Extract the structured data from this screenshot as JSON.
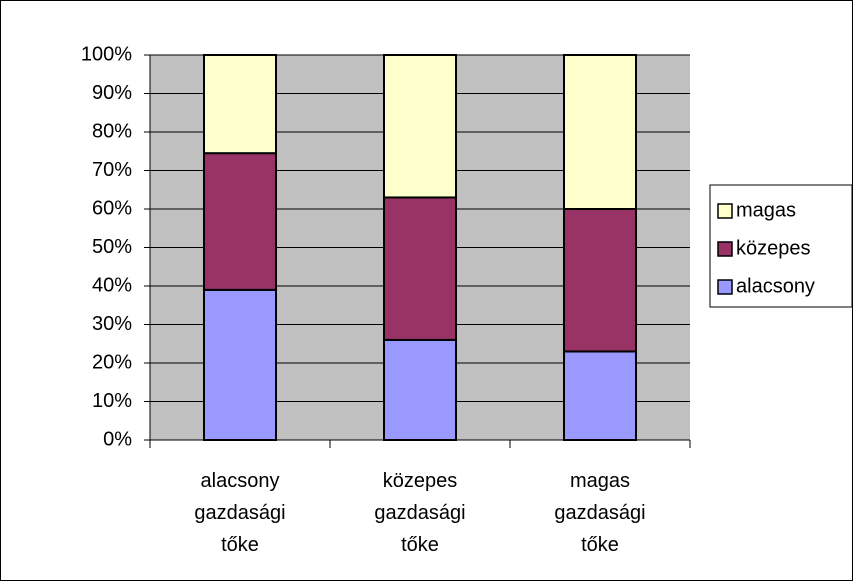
{
  "chart_data": {
    "type": "stacked_bar",
    "categories": [
      "alacsony gazdasági tőke",
      "közepes gazdasági tőke",
      "magas gazdasági tőke"
    ],
    "series": [
      {
        "name": "alacsony",
        "color": "#9999ff",
        "values": [
          39,
          26,
          23
        ]
      },
      {
        "name": "közepes",
        "color": "#993366",
        "values": [
          35.5,
          37,
          37
        ]
      },
      {
        "name": "magas",
        "color": "#ffffcc",
        "values": [
          25.5,
          37,
          40
        ]
      }
    ],
    "ylim": [
      0,
      100
    ],
    "yticks": [
      {
        "value": 0,
        "label": "0%"
      },
      {
        "value": 10,
        "label": "10%"
      },
      {
        "value": 20,
        "label": "20%"
      },
      {
        "value": 30,
        "label": "30%"
      },
      {
        "value": 40,
        "label": "40%"
      },
      {
        "value": 50,
        "label": "50%"
      },
      {
        "value": 60,
        "label": "60%"
      },
      {
        "value": 70,
        "label": "70%"
      },
      {
        "value": 80,
        "label": "80%"
      },
      {
        "value": 90,
        "label": "90%"
      },
      {
        "value": 100,
        "label": "100%"
      }
    ],
    "grid": true,
    "legend": "right"
  }
}
